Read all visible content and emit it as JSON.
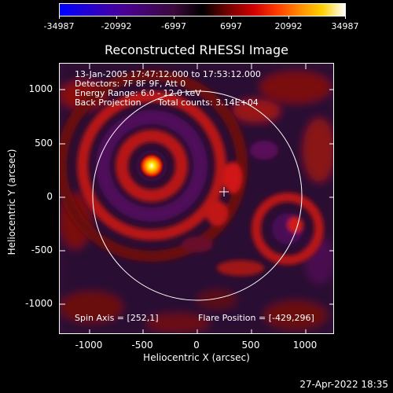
{
  "colorbar": {
    "labels": [
      "-34987",
      "-20992",
      "-6997",
      "6997",
      "20992",
      "34987"
    ]
  },
  "title": "Reconstructed RHESSI Image",
  "info": {
    "time_range": "13-Jan-2005 17:47:12.000 to 17:53:12.000",
    "detectors": "Detectors: 7F 8F 9F, Att 0",
    "energy": "Energy Range: 6.0 - 12.0 keV",
    "method": "Back Projection",
    "counts": "Total counts: 3.14E+04",
    "spin_axis": "Spin Axis = [252,1]",
    "flare_position": "Flare Position = [-429,296]"
  },
  "axes": {
    "xlabel": "Heliocentric X (arcsec)",
    "ylabel": "Heliocentric Y (arcsec)",
    "xticks": [
      "-1000",
      "-500",
      "0",
      "500",
      "1000"
    ],
    "yticks": [
      "1000",
      "500",
      "0",
      "-500",
      "-1000"
    ]
  },
  "footer": {
    "date": "27-Apr-2022 18:35"
  }
}
